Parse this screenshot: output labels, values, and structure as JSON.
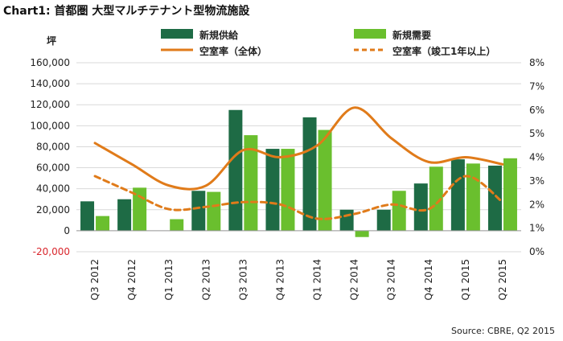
{
  "chart_data": {
    "type": "bar",
    "title": "Chart1: 首都圏 大型マルチテナント型物流施設",
    "source": "Source: CBRE, Q2 2015",
    "ylabel_left": "坪",
    "ylabel_right": "",
    "categories": [
      "Q3 2012",
      "Q4 2012",
      "Q1 2013",
      "Q2 2013",
      "Q3 2013",
      "Q4 2013",
      "Q1 2014",
      "Q2 2014",
      "Q3 2014",
      "Q4 2014",
      "Q1 2015",
      "Q2 2015"
    ],
    "ylim_left": [
      -20000,
      160000
    ],
    "ylim_right": [
      0,
      8
    ],
    "left_ticks": [
      "-20,000",
      "0",
      "20,000",
      "40,000",
      "60,000",
      "80,000",
      "100,000",
      "120,000",
      "140,000",
      "160,000"
    ],
    "right_ticks": [
      "0%",
      "1%",
      "2%",
      "3%",
      "4%",
      "5%",
      "6%",
      "7%",
      "8%"
    ],
    "series": [
      {
        "name": "新規供給",
        "kind": "bar",
        "axis": "left",
        "color": "#1e6b45",
        "values": [
          28000,
          30000,
          0,
          38000,
          115000,
          78000,
          108000,
          20000,
          20000,
          45000,
          68000,
          62000
        ]
      },
      {
        "name": "新規需要",
        "kind": "bar",
        "axis": "left",
        "color": "#6abf2e",
        "values": [
          14000,
          41000,
          11000,
          37000,
          91000,
          78000,
          96000,
          -6000,
          38000,
          61000,
          64000,
          69000
        ]
      },
      {
        "name": "空室率（全体）",
        "kind": "line",
        "axis": "right",
        "color": "#e07b1a",
        "values": [
          4.6,
          3.7,
          2.8,
          2.8,
          4.3,
          4.0,
          4.5,
          6.1,
          4.8,
          3.8,
          4.0,
          3.7
        ]
      },
      {
        "name": "空室率（竣工1年以上）",
        "kind": "line",
        "style": "dashed",
        "axis": "right",
        "color": "#e07b1a",
        "values": [
          3.2,
          2.5,
          1.8,
          1.9,
          2.1,
          2.0,
          1.4,
          1.6,
          2.0,
          1.8,
          3.2,
          2.1
        ]
      }
    ],
    "grid": true,
    "legend_position": "top"
  }
}
